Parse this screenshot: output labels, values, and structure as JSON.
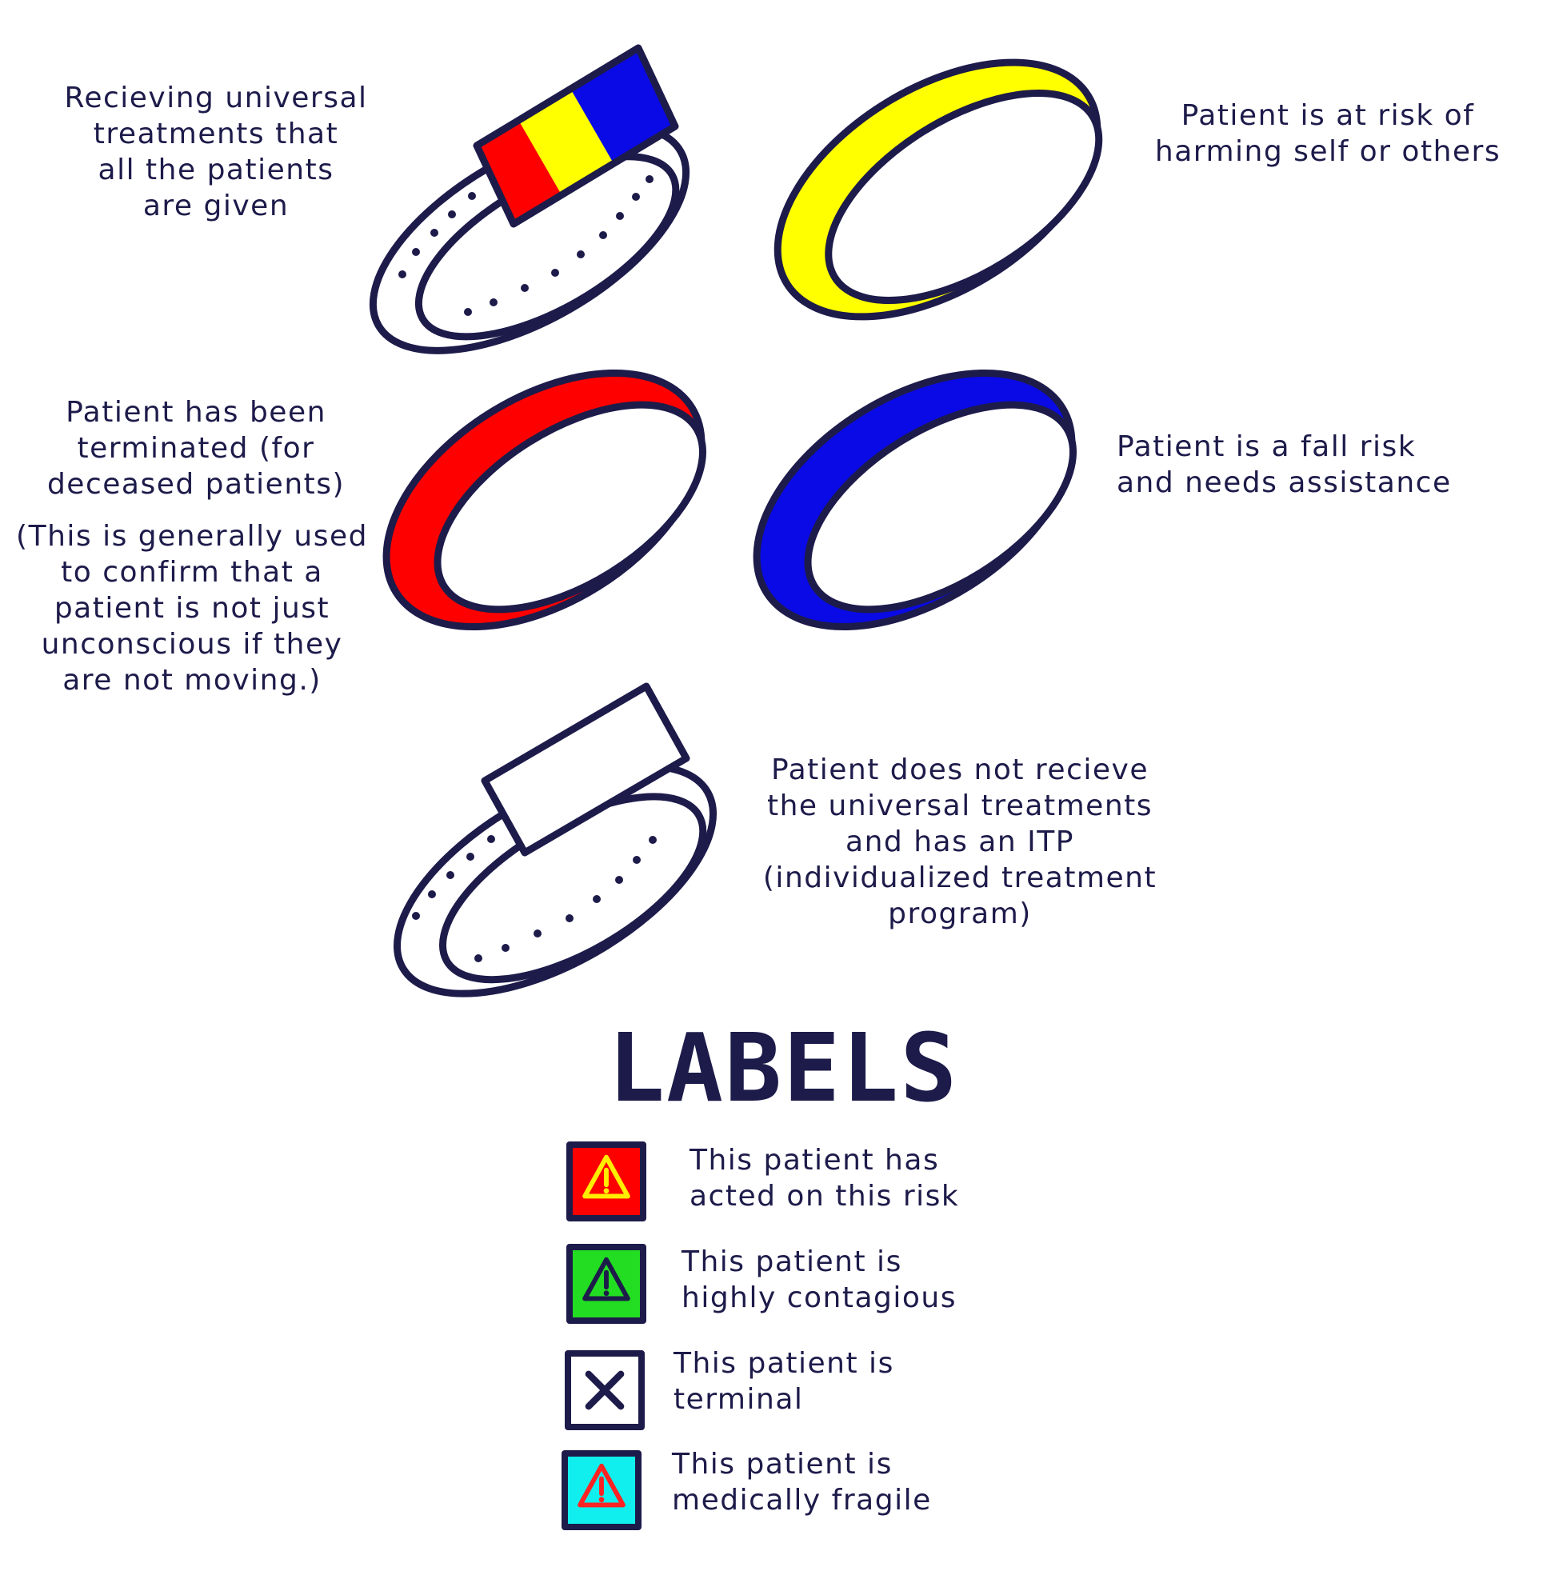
{
  "colors": {
    "ink": "#1d1b4a",
    "red": "#ff0000",
    "yellow": "#ffff00",
    "blue": "#0a0ae6",
    "white": "#ffffff",
    "green": "#22dd22",
    "cyan": "#11eeee"
  },
  "bands": [
    {
      "name": "universal-treatment-band",
      "colors": [
        "red",
        "yellow",
        "blue"
      ],
      "style": "snap-band",
      "description": "Recieving universal\ntreatments that\nall the patients\nare given"
    },
    {
      "name": "yellow-band",
      "colors": [
        "yellow"
      ],
      "style": "solid-band",
      "description": "Patient is at risk of\nharming self or others"
    },
    {
      "name": "red-band",
      "colors": [
        "red"
      ],
      "style": "solid-band",
      "description": "Patient has been\nterminated (for\ndeceased patients)",
      "note": "(This is generally used\nto confirm that a\npatient is not just\nunconscious if they\nare not moving.)"
    },
    {
      "name": "blue-band",
      "colors": [
        "blue"
      ],
      "style": "solid-band",
      "description": "Patient is a fall risk\nand needs assistance"
    },
    {
      "name": "itp-band",
      "colors": [
        "white"
      ],
      "style": "snap-band",
      "description": "Patient does not recieve\nthe universal treatments\nand has an ITP\n(individualized treatment\nprogram)"
    }
  ],
  "labels": {
    "title": "LABELS",
    "items": [
      {
        "icon": "warning-icon",
        "background": "red",
        "symbol_color": "#ffee00",
        "text": "This patient has\nacted on this risk"
      },
      {
        "icon": "warning-icon",
        "background": "green",
        "symbol_color": "#1d1b4a",
        "text": "This patient is\nhighly contagious"
      },
      {
        "icon": "x-mark-icon",
        "background": "white",
        "symbol_color": "#1d1b4a",
        "text": "This patient is\nterminal"
      },
      {
        "icon": "warning-icon",
        "background": "cyan",
        "symbol_color": "#ff2222",
        "text": "This patient is\nmedically fragile"
      }
    ]
  }
}
